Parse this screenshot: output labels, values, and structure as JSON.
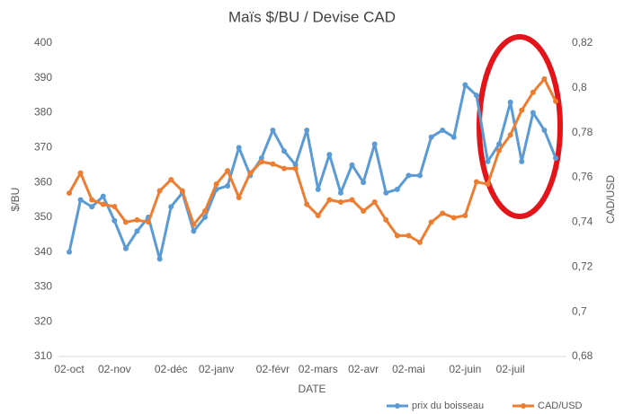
{
  "chart_data": {
    "type": "line",
    "title": "Maïs $/BU / Devise CAD",
    "xlabel": "DATE",
    "ylabel": "$/BU",
    "y2label": "CAD/USD",
    "categories": [
      "02-oct",
      null,
      null,
      null,
      "02-nov",
      null,
      null,
      null,
      null,
      "02-déc",
      null,
      null,
      null,
      "02-janv",
      null,
      null,
      null,
      null,
      "02-févr",
      null,
      null,
      null,
      "02-mars",
      null,
      null,
      null,
      "02-avr",
      null,
      null,
      null,
      "02-mai",
      null,
      null,
      null,
      null,
      "02-juin",
      null,
      null,
      null,
      "02-juil",
      null,
      null,
      null,
      null
    ],
    "ylim": [
      310,
      400
    ],
    "yticks": [
      310,
      320,
      330,
      340,
      350,
      360,
      370,
      380,
      390,
      400
    ],
    "y2lim": [
      0.68,
      0.82
    ],
    "y2ticks": [
      {
        "value": 0.68,
        "label": "0,68"
      },
      {
        "value": 0.7,
        "label": "0,7"
      },
      {
        "value": 0.72,
        "label": "0,72"
      },
      {
        "value": 0.74,
        "label": "0,74"
      },
      {
        "value": 0.76,
        "label": "0,76"
      },
      {
        "value": 0.78,
        "label": "0,78"
      },
      {
        "value": 0.8,
        "label": "0,8"
      },
      {
        "value": 0.82,
        "label": "0,82"
      }
    ],
    "legend": "bottom-right",
    "series": [
      {
        "name": "prix du boisseau",
        "color": "#5b9bd5",
        "values": [
          340,
          355,
          353,
          356,
          349,
          341,
          346,
          350,
          338,
          353,
          357,
          346,
          350,
          358,
          359,
          370,
          362,
          367,
          375,
          369,
          365,
          375,
          358,
          368,
          357,
          365,
          360,
          371,
          357,
          358,
          362,
          362,
          373,
          375,
          373,
          388,
          385,
          366,
          371,
          383,
          366,
          380,
          375,
          367
        ]
      },
      {
        "name": "CAD/USD",
        "color": "#ed7d31",
        "axis": "y2",
        "values": [
          0.753,
          0.762,
          0.75,
          0.748,
          0.747,
          0.74,
          0.741,
          0.74,
          0.754,
          0.759,
          0.754,
          0.739,
          0.745,
          0.757,
          0.763,
          0.751,
          0.762,
          0.767,
          0.766,
          0.764,
          0.764,
          0.748,
          0.743,
          0.75,
          0.749,
          0.75,
          0.745,
          0.749,
          0.741,
          0.734,
          0.734,
          0.731,
          0.74,
          0.744,
          0.742,
          0.743,
          0.758,
          0.757,
          0.772,
          0.779,
          0.79,
          0.798,
          0.804,
          0.794
        ]
      }
    ]
  }
}
